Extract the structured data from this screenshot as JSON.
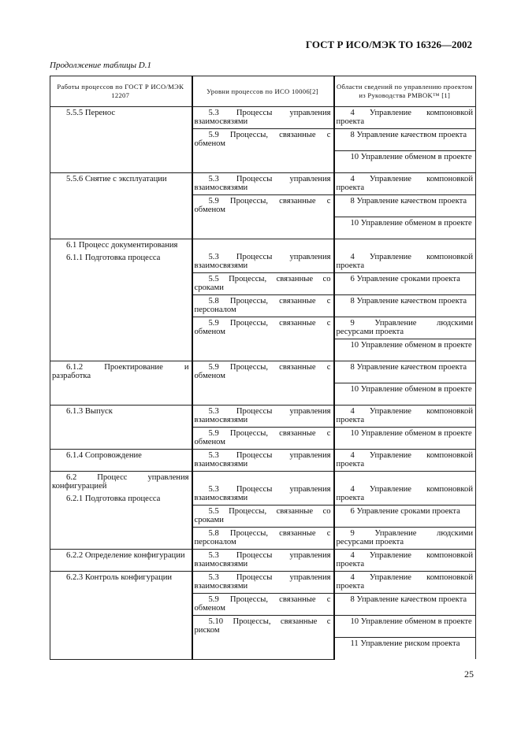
{
  "header": {
    "title": "ГОСТ Р ИСО/МЭК ТО 16326—2002"
  },
  "caption": "Продолжение таблицы D.1",
  "table": {
    "headers": [
      "Работы процессов по ГОСТ Р ИСО/МЭК 12207",
      "Уровни процессов по ИСО 10006[2]",
      "Области сведений по управлению проектом из Руководства PMBOK™ [1]"
    ],
    "groups": [
      {
        "work": [
          "5.5.5 Перенос"
        ],
        "levels": [
          {
            "text": "5.3 Процессы управления взаимосвязями",
            "areas": [
              "4 Управление компоновкой проекта"
            ]
          },
          {
            "text": "5.9 Процессы, связанные с обменом",
            "areas": [
              "8 Управление качеством проекта",
              "10 Управление обменом в проекте"
            ]
          }
        ]
      },
      {
        "work": [
          "5.5.6 Снятие с эксплуатации"
        ],
        "levels": [
          {
            "text": "5.3 Процессы управления взаимосвязями",
            "areas": [
              "4 Управление компоновкой проекта"
            ]
          },
          {
            "text": "5.9 Процессы, связанные с обменом",
            "areas": [
              "8 Управление качеством проекта",
              "10 Управление обменом в проекте"
            ]
          }
        ]
      },
      {
        "work": [
          "6.1 Процесс документирования",
          "6.1.1 Подготовка процесса"
        ],
        "levels": [
          {
            "text": "5.3 Процессы управления взаимосвязями",
            "areas": [
              "4 Управление компоновкой проекта"
            ]
          },
          {
            "text": "5.5 Процессы, связанные со сроками",
            "areas": [
              "6 Управление сроками проекта"
            ]
          },
          {
            "text": "5.8 Процессы, связанные с персоналом",
            "areas": [
              "8 Управление качеством проекта"
            ]
          },
          {
            "text": "5.9 Процессы, связанные с обменом",
            "areas": [
              "9 Управление людскими ресурсами проекта",
              "10 Управление обменом в проекте"
            ]
          }
        ]
      },
      {
        "work": [
          "6.1.2 Проектирование и разработка"
        ],
        "levels": [
          {
            "text": "5.9 Процессы, связанные с обменом",
            "areas": [
              "8 Управление качеством проекта",
              "10 Управление обменом в проекте"
            ]
          }
        ]
      },
      {
        "work": [
          "6.1.3 Выпуск"
        ],
        "levels": [
          {
            "text": "5.3 Процессы управления взаимосвязями",
            "areas": [
              "4 Управление компоновкой проекта"
            ]
          },
          {
            "text": "5.9 Процессы, связанные с обменом",
            "areas": [
              "10 Управление обменом в проекте"
            ]
          }
        ]
      },
      {
        "work": [
          "6.1.4 Сопровождение"
        ],
        "levels": [
          {
            "text": "5.3 Процессы управления взаимосвязями",
            "areas": [
              "4 Управление компоновкой проекта"
            ]
          }
        ]
      },
      {
        "work": [
          "6.2 Процесс управления конфигурацией",
          "6.2.1 Подготовка процесса"
        ],
        "levels": [
          {
            "text": "5.3 Процессы управления взаимосвязями",
            "areas": [
              "4 Управление компоновкой проекта"
            ]
          },
          {
            "text": "5.5 Процессы, связанные со сроками",
            "areas": [
              "6 Управление сроками проекта"
            ]
          },
          {
            "text": "5.8 Процессы, связанные с персоналом",
            "areas": [
              "9 Управление людскими ресурсами проекта"
            ]
          }
        ]
      },
      {
        "work": [
          "6.2.2 Определение конфигурации"
        ],
        "levels": [
          {
            "text": "5.3 Процессы управления взаимосвязями",
            "areas": [
              "4 Управление компоновкой проекта"
            ]
          }
        ]
      },
      {
        "work": [
          "6.2.3 Контроль конфигурации"
        ],
        "levels": [
          {
            "text": "5.3 Процессы управления взаимосвязями",
            "areas": [
              "4 Управление компоновкой проекта"
            ]
          },
          {
            "text": "5.9 Процессы, связанные с обменом",
            "areas": [
              "8 Управление качеством проекта"
            ]
          },
          {
            "text": "5.10 Процессы, связанные с риском",
            "areas": [
              "10 Управление обменом в проекте",
              "11 Управление риском проекта"
            ]
          }
        ]
      }
    ]
  },
  "page_number": "25"
}
